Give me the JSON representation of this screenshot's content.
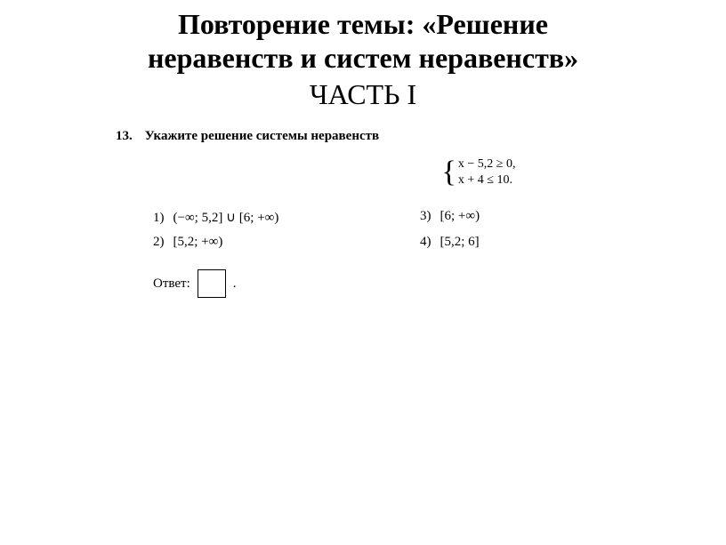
{
  "title_line1": "Повторение темы: «Решение",
  "title_line2": "неравенств и систем неравенств»",
  "subtitle": "ЧАСТЬ I",
  "problem": {
    "number": "13.",
    "prompt": "Укажите решение системы неравенств",
    "system_line1": "x − 5,2 ≥ 0,",
    "system_line2": "x + 4 ≤ 10."
  },
  "options": [
    {
      "n": "1)",
      "expr": "(−∞; 5,2] ∪ [6; +∞)"
    },
    {
      "n": "3)",
      "expr": "[6; +∞)"
    },
    {
      "n": "2)",
      "expr": "[5,2; +∞)"
    },
    {
      "n": "4)",
      "expr": "[5,2; 6]"
    }
  ],
  "answer_label": "Ответ:",
  "period": "."
}
